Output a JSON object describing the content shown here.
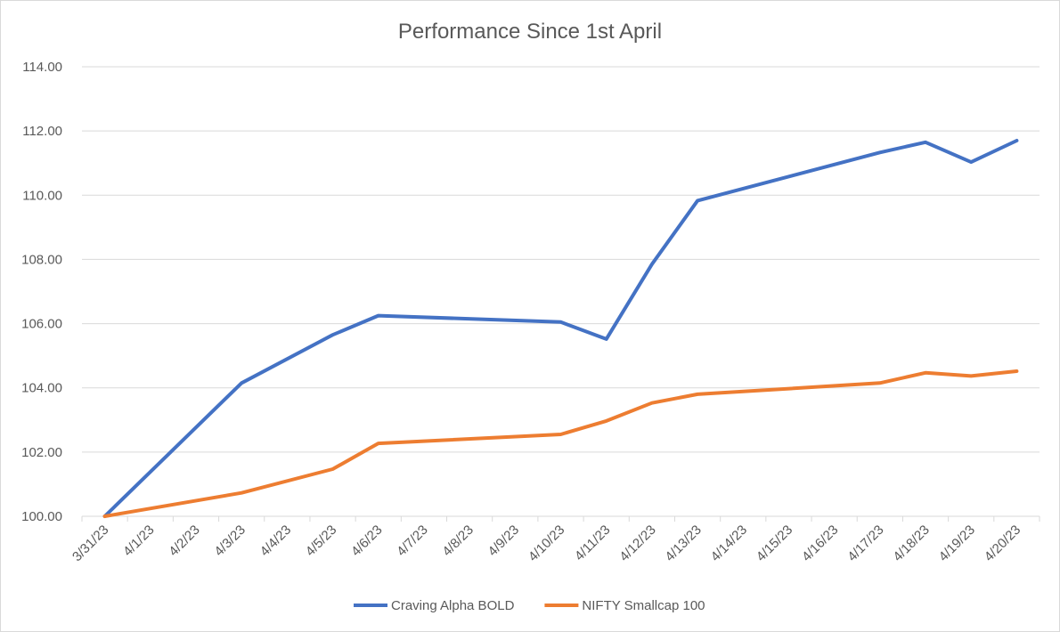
{
  "chart_data": {
    "type": "line",
    "title": "Performance Since 1st April",
    "xlabel": "",
    "ylabel": "",
    "ylim": [
      100,
      114
    ],
    "y_ticks": [
      "100.00",
      "102.00",
      "104.00",
      "106.00",
      "108.00",
      "110.00",
      "112.00",
      "114.00"
    ],
    "x_ticks": [
      "3/31/23",
      "4/1/23",
      "4/2/23",
      "4/3/23",
      "4/4/23",
      "4/5/23",
      "4/6/23",
      "4/7/23",
      "4/8/23",
      "4/9/23",
      "4/10/23",
      "4/11/23",
      "4/12/23",
      "4/13/23",
      "4/14/23",
      "4/15/23",
      "4/16/23",
      "4/17/23",
      "4/18/23",
      "4/19/23",
      "4/20/23"
    ],
    "grid": true,
    "legend_position": "bottom",
    "series": [
      {
        "name": "Craving Alpha BOLD",
        "color": "#4472C4",
        "points": [
          {
            "x": "3/31/23",
            "y": 100.0
          },
          {
            "x": "4/3/23",
            "y": 104.15
          },
          {
            "x": "4/5/23",
            "y": 105.65
          },
          {
            "x": "4/6/23",
            "y": 106.25
          },
          {
            "x": "4/10/23",
            "y": 106.05
          },
          {
            "x": "4/11/23",
            "y": 105.52
          },
          {
            "x": "4/12/23",
            "y": 107.85
          },
          {
            "x": "4/13/23",
            "y": 109.83
          },
          {
            "x": "4/17/23",
            "y": 111.33
          },
          {
            "x": "4/18/23",
            "y": 111.65
          },
          {
            "x": "4/19/23",
            "y": 111.03
          },
          {
            "x": "4/20/23",
            "y": 111.7
          }
        ]
      },
      {
        "name": "NIFTY Smallcap 100",
        "color": "#ED7D31",
        "points": [
          {
            "x": "3/31/23",
            "y": 100.0
          },
          {
            "x": "4/3/23",
            "y": 100.73
          },
          {
            "x": "4/5/23",
            "y": 101.47
          },
          {
            "x": "4/6/23",
            "y": 102.27
          },
          {
            "x": "4/10/23",
            "y": 102.55
          },
          {
            "x": "4/11/23",
            "y": 102.97
          },
          {
            "x": "4/12/23",
            "y": 103.53
          },
          {
            "x": "4/13/23",
            "y": 103.8
          },
          {
            "x": "4/17/23",
            "y": 104.15
          },
          {
            "x": "4/18/23",
            "y": 104.47
          },
          {
            "x": "4/19/23",
            "y": 104.37
          },
          {
            "x": "4/20/23",
            "y": 104.52
          }
        ]
      }
    ]
  }
}
